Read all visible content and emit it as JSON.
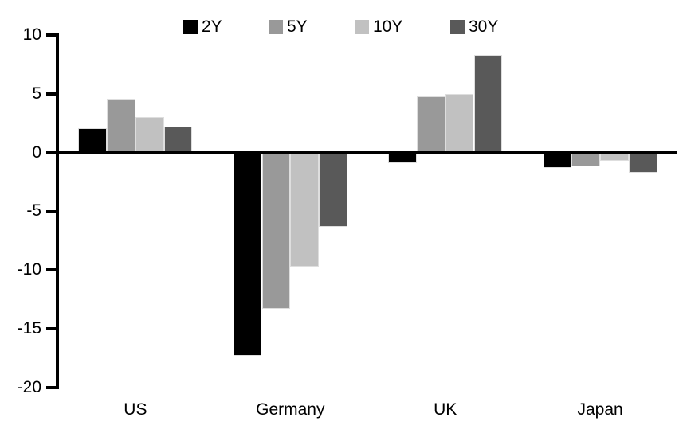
{
  "chart_data": {
    "type": "bar",
    "title": "",
    "xlabel": "",
    "ylabel": "",
    "categories": [
      "US",
      "Germany",
      "UK",
      "Japan"
    ],
    "series": [
      {
        "name": "2Y",
        "color": "#000000",
        "values": [
          2.1,
          -17.3,
          -0.9,
          -1.3
        ]
      },
      {
        "name": "5Y",
        "color": "#999999",
        "values": [
          4.5,
          -13.3,
          4.8,
          -1.2
        ]
      },
      {
        "name": "10Y",
        "color": "#c1c1c1",
        "values": [
          3.0,
          -9.7,
          5.0,
          -0.7
        ]
      },
      {
        "name": "30Y",
        "color": "#595959",
        "values": [
          2.2,
          -6.3,
          8.3,
          -1.7
        ]
      }
    ],
    "ylim": [
      -20,
      10
    ],
    "yticks": [
      10,
      5,
      0,
      -5,
      -10,
      -15,
      -20
    ],
    "legend_position": "top",
    "grid": false
  },
  "colors": {
    "background": "#ffffff",
    "axis": "#000000",
    "bar_border": "#dedede"
  }
}
